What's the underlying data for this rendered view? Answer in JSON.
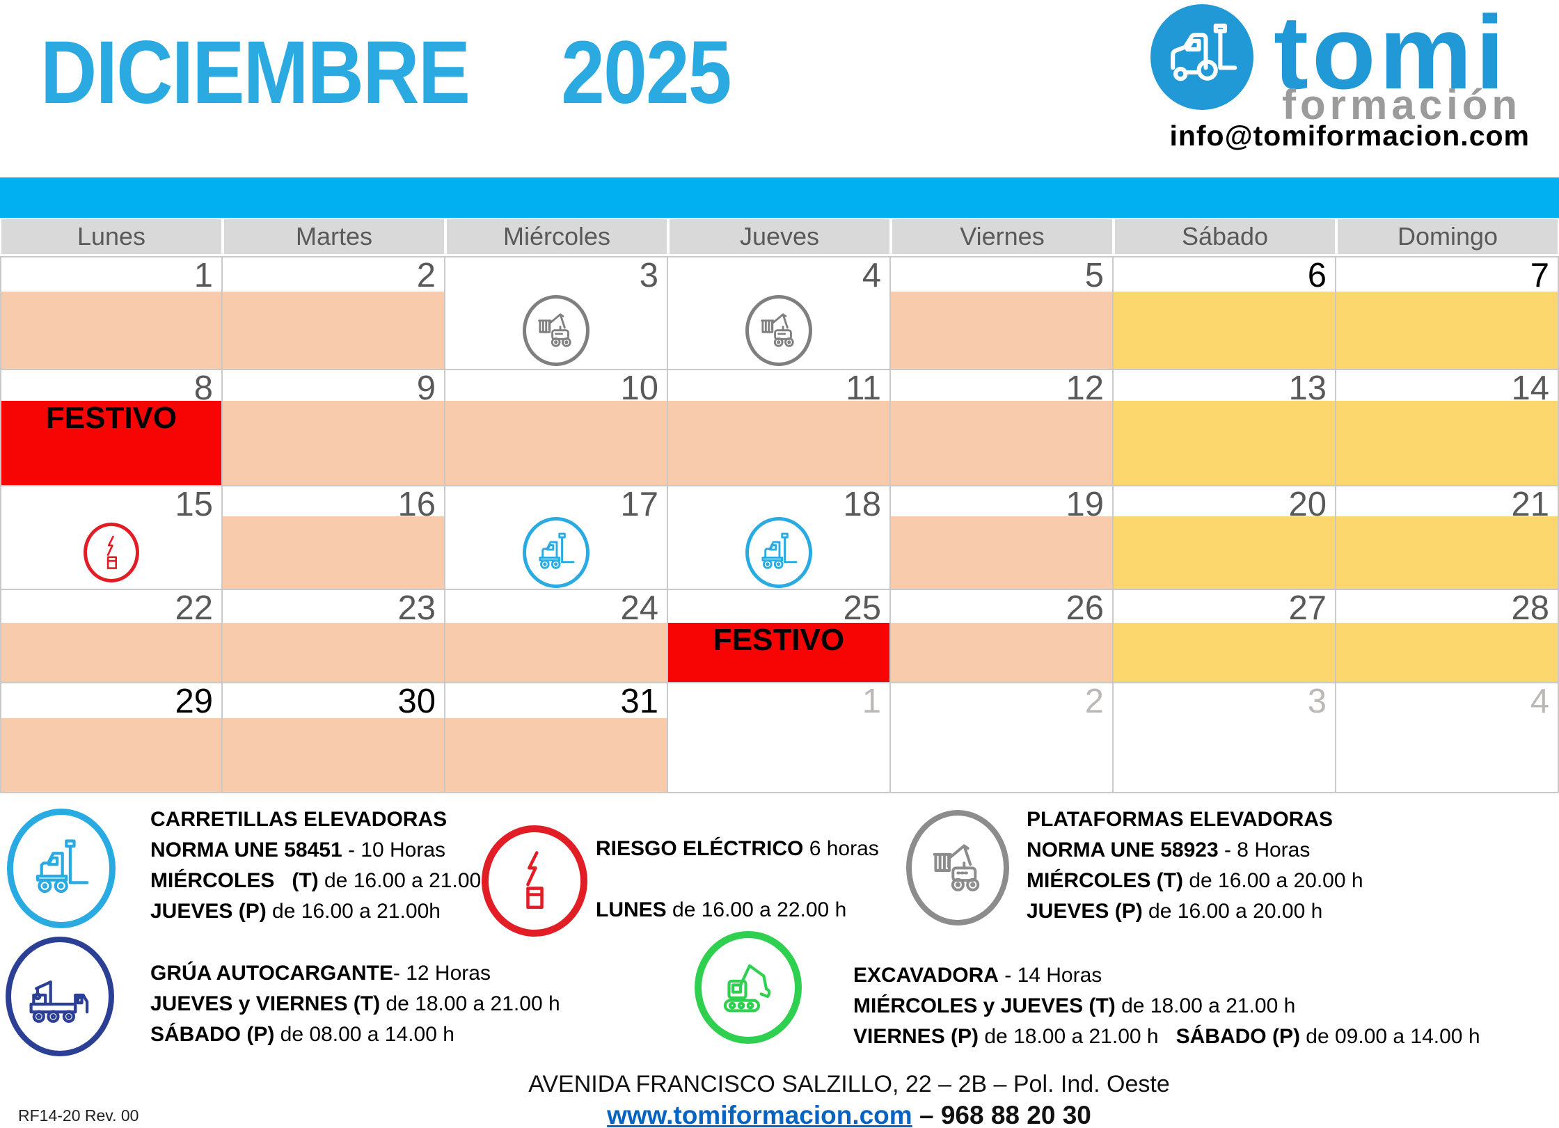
{
  "title": {
    "month": "DICIEMBRE",
    "year": "2025"
  },
  "logo": {
    "brand": "tomi",
    "subtitle": "formación",
    "email": "info@tomiformacion.com"
  },
  "weekdays": [
    "Lunes",
    "Martes",
    "Miércoles",
    "Jueves",
    "Viernes",
    "Sábado",
    "Domingo"
  ],
  "festivo_label": "FESTIVO",
  "calendar": {
    "weeks": [
      [
        {
          "n": "1",
          "band": "peach"
        },
        {
          "n": "2",
          "band": "peach"
        },
        {
          "n": "3",
          "band": "none",
          "icon": "platform"
        },
        {
          "n": "4",
          "band": "none",
          "icon": "platform"
        },
        {
          "n": "5",
          "band": "peach"
        },
        {
          "n": "6",
          "band": "yellow",
          "strong": true
        },
        {
          "n": "7",
          "band": "yellow",
          "strong": true
        }
      ],
      [
        {
          "n": "8",
          "band": "red",
          "festivo": true
        },
        {
          "n": "9",
          "band": "peach"
        },
        {
          "n": "10",
          "band": "peach"
        },
        {
          "n": "11",
          "band": "peach"
        },
        {
          "n": "12",
          "band": "peach"
        },
        {
          "n": "13",
          "band": "yellow"
        },
        {
          "n": "14",
          "band": "yellow"
        }
      ],
      [
        {
          "n": "15",
          "band": "none",
          "icon": "electric"
        },
        {
          "n": "16",
          "band": "peach"
        },
        {
          "n": "17",
          "band": "none",
          "icon": "forklift"
        },
        {
          "n": "18",
          "band": "none",
          "icon": "forklift"
        },
        {
          "n": "19",
          "band": "peach"
        },
        {
          "n": "20",
          "band": "yellow"
        },
        {
          "n": "21",
          "band": "yellow"
        }
      ],
      [
        {
          "n": "22",
          "band": "peach"
        },
        {
          "n": "23",
          "band": "peach"
        },
        {
          "n": "24",
          "band": "peach"
        },
        {
          "n": "25",
          "band": "red",
          "festivo": true
        },
        {
          "n": "26",
          "band": "peach"
        },
        {
          "n": "27",
          "band": "yellow"
        },
        {
          "n": "28",
          "band": "yellow"
        }
      ],
      [
        {
          "n": "29",
          "band": "peach",
          "strong": true
        },
        {
          "n": "30",
          "band": "peach",
          "strong": true
        },
        {
          "n": "31",
          "band": "peach",
          "strong": true
        },
        {
          "n": "1",
          "band": "none",
          "muted": true
        },
        {
          "n": "2",
          "band": "none",
          "muted": true
        },
        {
          "n": "3",
          "band": "none",
          "muted": true
        },
        {
          "n": "4",
          "band": "none",
          "muted": true
        }
      ]
    ]
  },
  "legend": [
    {
      "id": "carretillas-elevadoras",
      "icon": "forklift",
      "color": "#29ABE2",
      "lines": [
        [
          {
            "b": true,
            "t": "CARRETILLAS ELEVADORAS"
          }
        ],
        [
          {
            "b": true,
            "t": "NORMA UNE 58451"
          },
          {
            "b": false,
            "t": " - 10 Horas"
          }
        ],
        [
          {
            "b": true,
            "t": "MIÉRCOLES   (T)"
          },
          {
            "b": false,
            "t": " de 16.00 a 21.00h"
          }
        ],
        [
          {
            "b": true,
            "t": "JUEVES (P)"
          },
          {
            "b": false,
            "t": " de 16.00 a 21.00h"
          }
        ]
      ]
    },
    {
      "id": "riesgo-electrico",
      "icon": "electric",
      "color": "#E11E25",
      "lines": [
        [
          {
            "b": true,
            "t": "RIESGO ELÉCTRICO"
          },
          {
            "b": false,
            "t": " 6 horas"
          }
        ],
        [],
        [
          {
            "b": true,
            "t": "LUNES"
          },
          {
            "b": false,
            "t": " de 16.00 a 22.00 h"
          }
        ]
      ]
    },
    {
      "id": "plataformas-elevadoras",
      "icon": "platform",
      "color": "#8C8C8C",
      "lines": [
        [
          {
            "b": true,
            "t": "PLATAFORMAS ELEVADORAS"
          }
        ],
        [
          {
            "b": true,
            "t": "NORMA UNE 58923"
          },
          {
            "b": false,
            "t": " - 8 Horas"
          }
        ],
        [
          {
            "b": true,
            "t": "MIÉRCOLES (T)"
          },
          {
            "b": false,
            "t": " de 16.00 a 20.00 h"
          }
        ],
        [
          {
            "b": true,
            "t": "JUEVES (P)"
          },
          {
            "b": false,
            "t": " de 16.00 a 20.00 h"
          }
        ]
      ]
    },
    {
      "id": "grua-autocargante",
      "icon": "crane",
      "color": "#2B3F94",
      "lines": [
        [
          {
            "b": true,
            "t": "GRÚA AUTOCARGANTE"
          },
          {
            "b": false,
            "t": "- 12 Horas"
          }
        ],
        [
          {
            "b": true,
            "t": "JUEVES y VIERNES (T)"
          },
          {
            "b": false,
            "t": " de 18.00 a 21.00 h"
          }
        ],
        [
          {
            "b": true,
            "t": "SÁBADO (P)"
          },
          {
            "b": false,
            "t": " de 08.00 a 14.00 h"
          }
        ]
      ]
    },
    {
      "id": "excavadora",
      "icon": "excavator",
      "color": "#2FD04F",
      "lines": [
        [
          {
            "b": true,
            "t": "EXCAVADORA"
          },
          {
            "b": false,
            "t": " - 14 Horas"
          }
        ],
        [
          {
            "b": true,
            "t": "MIÉRCOLES y JUEVES (T)"
          },
          {
            "b": false,
            "t": " de 18.00 a 21.00 h"
          }
        ],
        [
          {
            "b": true,
            "t": "VIERNES (P)"
          },
          {
            "b": false,
            "t": " de 18.00 a 21.00 h   "
          },
          {
            "b": true,
            "t": "SÁBADO (P)"
          },
          {
            "b": false,
            "t": " de 09.00 a 14.00 h"
          }
        ]
      ]
    }
  ],
  "footer": {
    "address": "AVENIDA FRANCISCO SALZILLO, 22 – 2B – Pol. Ind. Oeste",
    "web": "www.tomiformacion.com",
    "separator": " – ",
    "phone": "968 88 20 30"
  },
  "doc_code": "RF14-20  Rev. 00",
  "colors": {
    "title": "#2BA9E1",
    "logo_blue": "#2199D6",
    "logo_gray": "#9C9B9B",
    "banner": "#00B0F0",
    "header_bg": "#D9D9D9",
    "day_text": "#595959",
    "muted_day": "#BDB8B8",
    "peach": "#F8CBAD",
    "yellow": "#FCD76E",
    "red": "#F70505",
    "link": "#0563C1",
    "grid_line": "#C9C9C9",
    "cell_icon_gray": "#7F7F7F",
    "cell_icon_blue": "#29ABE2",
    "cell_icon_red": "#E11E25"
  }
}
